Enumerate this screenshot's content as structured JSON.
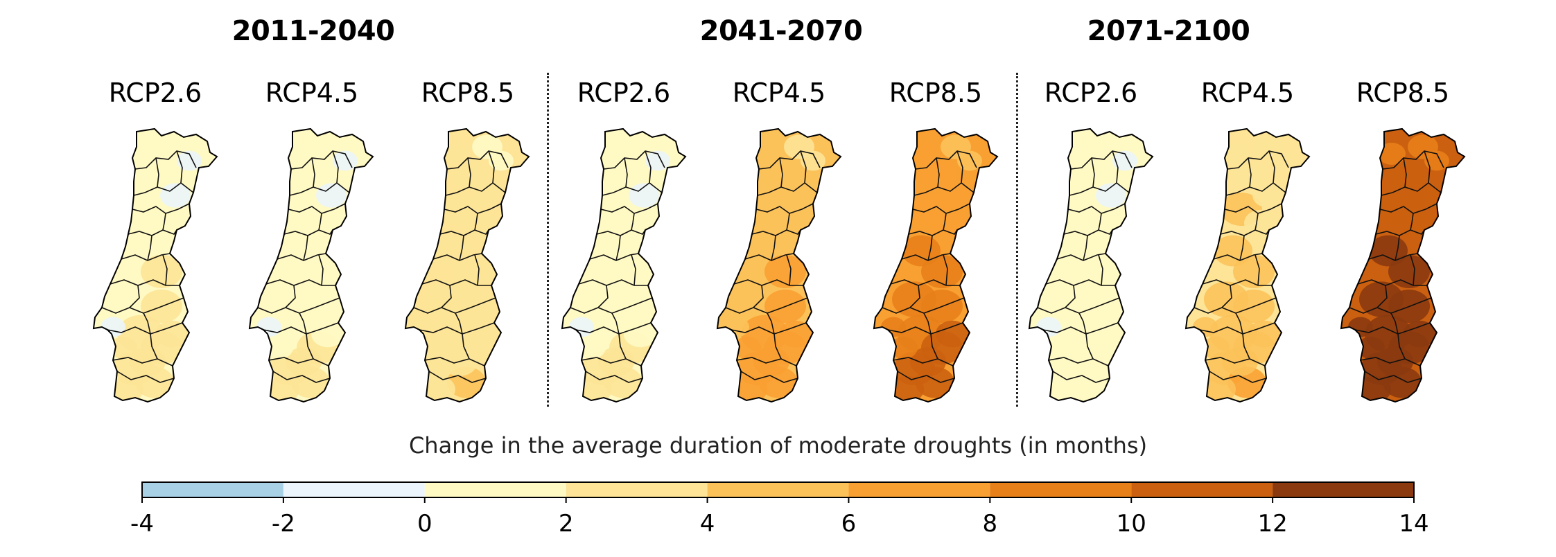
{
  "figure": {
    "periods": [
      {
        "label": "2011-2040",
        "scenarios": [
          {
            "label": "RCP2.6",
            "intensity": 0.1
          },
          {
            "label": "RCP4.5",
            "intensity": 0.08
          },
          {
            "label": "RCP8.5",
            "intensity": 0.18
          }
        ]
      },
      {
        "label": "2041-2070",
        "scenarios": [
          {
            "label": "RCP2.6",
            "intensity": 0.08
          },
          {
            "label": "RCP4.5",
            "intensity": 0.4
          },
          {
            "label": "RCP8.5",
            "intensity": 0.62
          }
        ]
      },
      {
        "label": "2071-2100",
        "scenarios": [
          {
            "label": "RCP2.6",
            "intensity": 0.05
          },
          {
            "label": "RCP4.5",
            "intensity": 0.3
          },
          {
            "label": "RCP8.5",
            "intensity": 0.95
          }
        ]
      }
    ]
  },
  "colorbar": {
    "title": "Change in the average duration of moderate droughts (in months)",
    "ticks": [
      "-4",
      "-2",
      "0",
      "2",
      "4",
      "6",
      "8",
      "10",
      "12",
      "14"
    ],
    "bins": [
      {
        "from": -4,
        "to": -2,
        "color": "#a9d1e6"
      },
      {
        "from": -2,
        "to": 0,
        "color": "#ebf5fb"
      },
      {
        "from": 0,
        "to": 2,
        "color": "#fff9c4"
      },
      {
        "from": 2,
        "to": 4,
        "color": "#fde497"
      },
      {
        "from": 4,
        "to": 6,
        "color": "#fcc25a"
      },
      {
        "from": 6,
        "to": 8,
        "color": "#f9a032"
      },
      {
        "from": 8,
        "to": 10,
        "color": "#e8801a"
      },
      {
        "from": 10,
        "to": 12,
        "color": "#cb6010"
      },
      {
        "from": 12,
        "to": 14,
        "color": "#8b3a0f"
      }
    ]
  }
}
